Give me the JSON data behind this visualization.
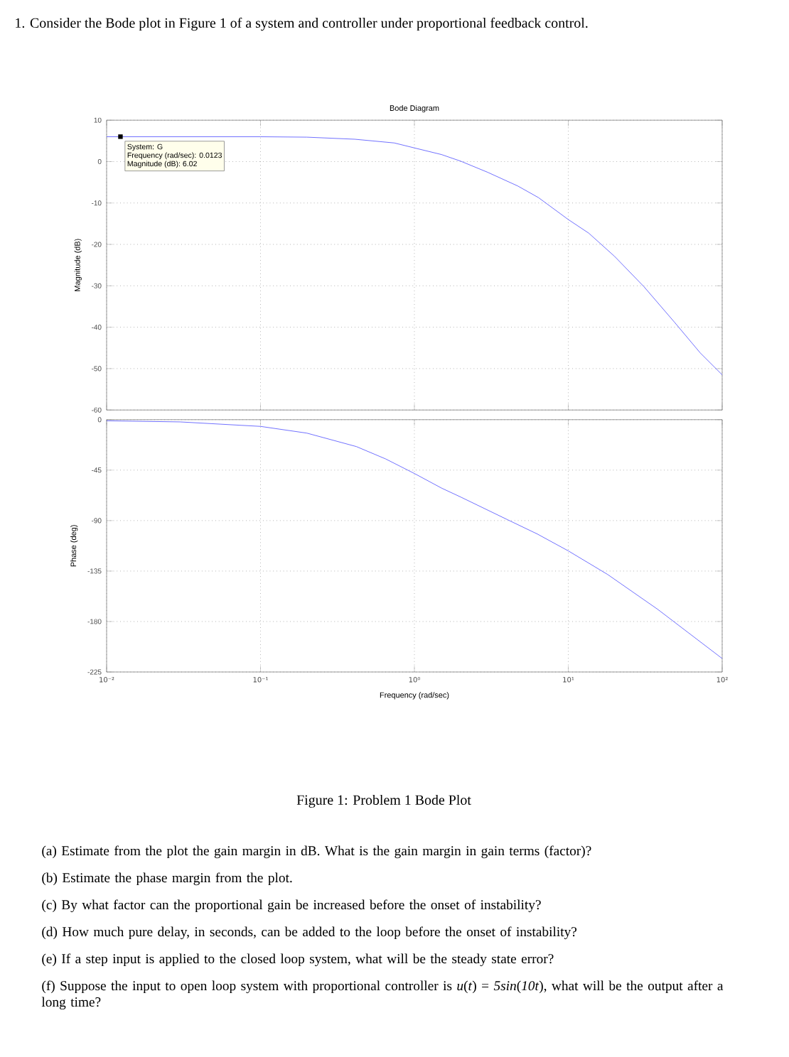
{
  "chart_data": [
    {
      "type": "line",
      "title": "Bode Diagram",
      "ylabel": "Magnitude (dB)",
      "log": "x",
      "grid": true,
      "tick_labels": "y",
      "xlim": [
        0.01,
        100
      ],
      "ylim": [
        -60,
        10
      ],
      "xticks": [
        {
          "value": 0.01,
          "label": null
        },
        {
          "value": 0.1,
          "label": null
        },
        {
          "value": 1,
          "label": null
        },
        {
          "value": 10,
          "label": null
        },
        {
          "value": 100,
          "label": null
        }
      ],
      "yticks": [
        -60,
        -50,
        -40,
        -30,
        -20,
        -10,
        0,
        10
      ],
      "x": [
        0.01,
        0.1,
        0.2,
        0.41,
        0.74,
        1,
        1.5,
        2,
        3,
        4.7,
        6.4,
        10,
        13.6,
        20,
        31,
        49,
        72,
        100
      ],
      "series": [
        {
          "color": "#4d4dff",
          "values": [
            6,
            6.0,
            5.9,
            5.4,
            4.5,
            3.3,
            1.7,
            0.1,
            -2.6,
            -5.9,
            -8.7,
            -14,
            -17.3,
            -22.9,
            -30.2,
            -38.8,
            -46.2,
            -51.5
          ]
        }
      ],
      "annotations": [
        "1. Consider the Bode plot in Figure 1 of a system and controller under proportional feedback control.",
        {
          "text": "System: G",
          "x": 0.0123,
          "y": 6.02
        },
        "Frequency (rad/sec): 0.0123",
        "Magnitude (dB): 6.02"
      ]
    },
    {
      "type": "line",
      "xlabel": "Frequency  (rad/sec)",
      "ylabel": "Phase (deg)",
      "log": "x",
      "grid": true,
      "xlim": [
        0.01,
        100
      ],
      "ylim": [
        -225,
        0
      ],
      "xticks": [
        {
          "value": 0.01,
          "label": "10⁻²"
        },
        {
          "value": 0.1,
          "label": "10⁻¹"
        },
        {
          "value": 1,
          "label": "10⁰"
        },
        {
          "value": 10,
          "label": "10¹"
        },
        {
          "value": 100,
          "label": "10²"
        }
      ],
      "yticks": [
        -225,
        -180,
        -135,
        -90,
        -45,
        0
      ],
      "x": [
        0.01,
        0.03,
        0.1,
        0.2,
        0.42,
        0.65,
        1,
        1.5,
        2,
        4,
        6.3,
        10,
        18,
        38,
        100
      ],
      "series": [
        {
          "color": "#4d4dff",
          "values": [
            -1,
            -2,
            -6,
            -12,
            -24,
            -35,
            -48,
            -61,
            -69,
            -89,
            -102,
            -117,
            -138,
            -169,
            -213
          ]
        }
      ],
      "annotations": [
        "Figure 1: Problem 1 Bode Plot",
        "(a) Estimate from the plot the gain margin in dB. What is the gain margin in gain terms (factor)?",
        "(b) Estimate the phase margin from the plot.",
        "(c) By what factor can the proportional gain be increased before the onset of instability?",
        "(d) How much pure delay, in seconds, can be added to the loop before the onset of instability?",
        "(e) If a step input is applied to the closed loop system, what will be the steady state error?",
        "(f) Suppose the input to open loop system with proportional controller is *u*(*t*) = *5sin*(*10t*), what will be the output after a long time?"
      ]
    }
  ]
}
